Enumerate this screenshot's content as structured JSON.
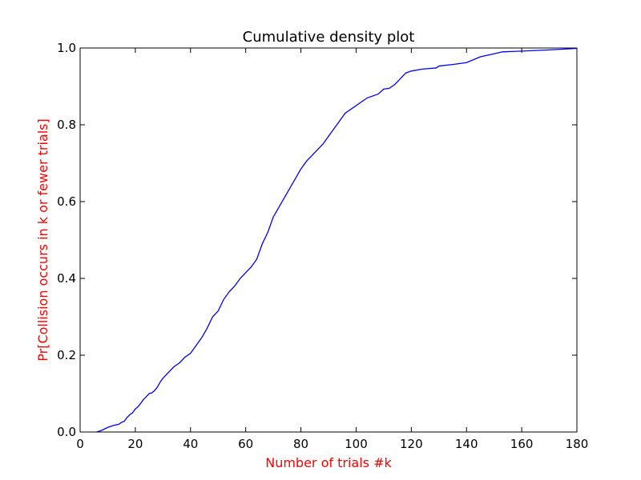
{
  "chart_data": {
    "type": "line",
    "title": "Cumulative density plot",
    "xlabel": "Number of trials #k",
    "ylabel": "Pr[Collision occurs in k or fewer trials]",
    "xlim": [
      0,
      180
    ],
    "ylim": [
      0.0,
      1.0
    ],
    "xticks": [
      0,
      20,
      40,
      60,
      80,
      100,
      120,
      140,
      160,
      180
    ],
    "yticks": [
      0.0,
      0.2,
      0.4,
      0.6,
      0.8,
      1.0
    ],
    "xtick_labels": [
      "0",
      "20",
      "40",
      "60",
      "80",
      "100",
      "120",
      "140",
      "160",
      "180"
    ],
    "ytick_labels": [
      "0.0",
      "0.2",
      "0.4",
      "0.6",
      "0.8",
      "1.0"
    ],
    "grid": false,
    "series": [
      {
        "color": "#0000ff",
        "x": [
          6,
          8,
          10,
          12,
          14,
          15,
          16,
          17,
          18,
          19,
          20,
          21,
          22,
          23,
          24,
          25,
          26,
          27,
          28,
          29,
          30,
          32,
          34,
          36,
          38,
          40,
          42,
          44,
          46,
          48,
          50,
          52,
          54,
          56,
          58,
          60,
          62,
          64,
          66,
          68,
          70,
          72,
          74,
          76,
          78,
          80,
          82,
          84,
          86,
          88,
          90,
          92,
          94,
          96,
          98,
          100,
          104,
          108,
          110,
          112,
          114,
          116,
          118,
          120,
          124,
          129,
          130,
          135,
          140,
          145,
          150,
          153,
          160,
          170,
          180
        ],
        "y": [
          0.0,
          0.005,
          0.012,
          0.017,
          0.02,
          0.025,
          0.028,
          0.038,
          0.045,
          0.05,
          0.06,
          0.066,
          0.075,
          0.085,
          0.092,
          0.1,
          0.102,
          0.108,
          0.117,
          0.13,
          0.14,
          0.155,
          0.17,
          0.18,
          0.195,
          0.205,
          0.225,
          0.245,
          0.27,
          0.3,
          0.315,
          0.345,
          0.365,
          0.38,
          0.4,
          0.415,
          0.43,
          0.45,
          0.49,
          0.52,
          0.56,
          0.585,
          0.61,
          0.635,
          0.66,
          0.685,
          0.705,
          0.72,
          0.735,
          0.75,
          0.77,
          0.79,
          0.81,
          0.83,
          0.84,
          0.85,
          0.87,
          0.88,
          0.893,
          0.895,
          0.905,
          0.92,
          0.935,
          0.94,
          0.945,
          0.948,
          0.953,
          0.957,
          0.962,
          0.977,
          0.985,
          0.99,
          0.992,
          0.995,
          0.999
        ]
      }
    ]
  }
}
